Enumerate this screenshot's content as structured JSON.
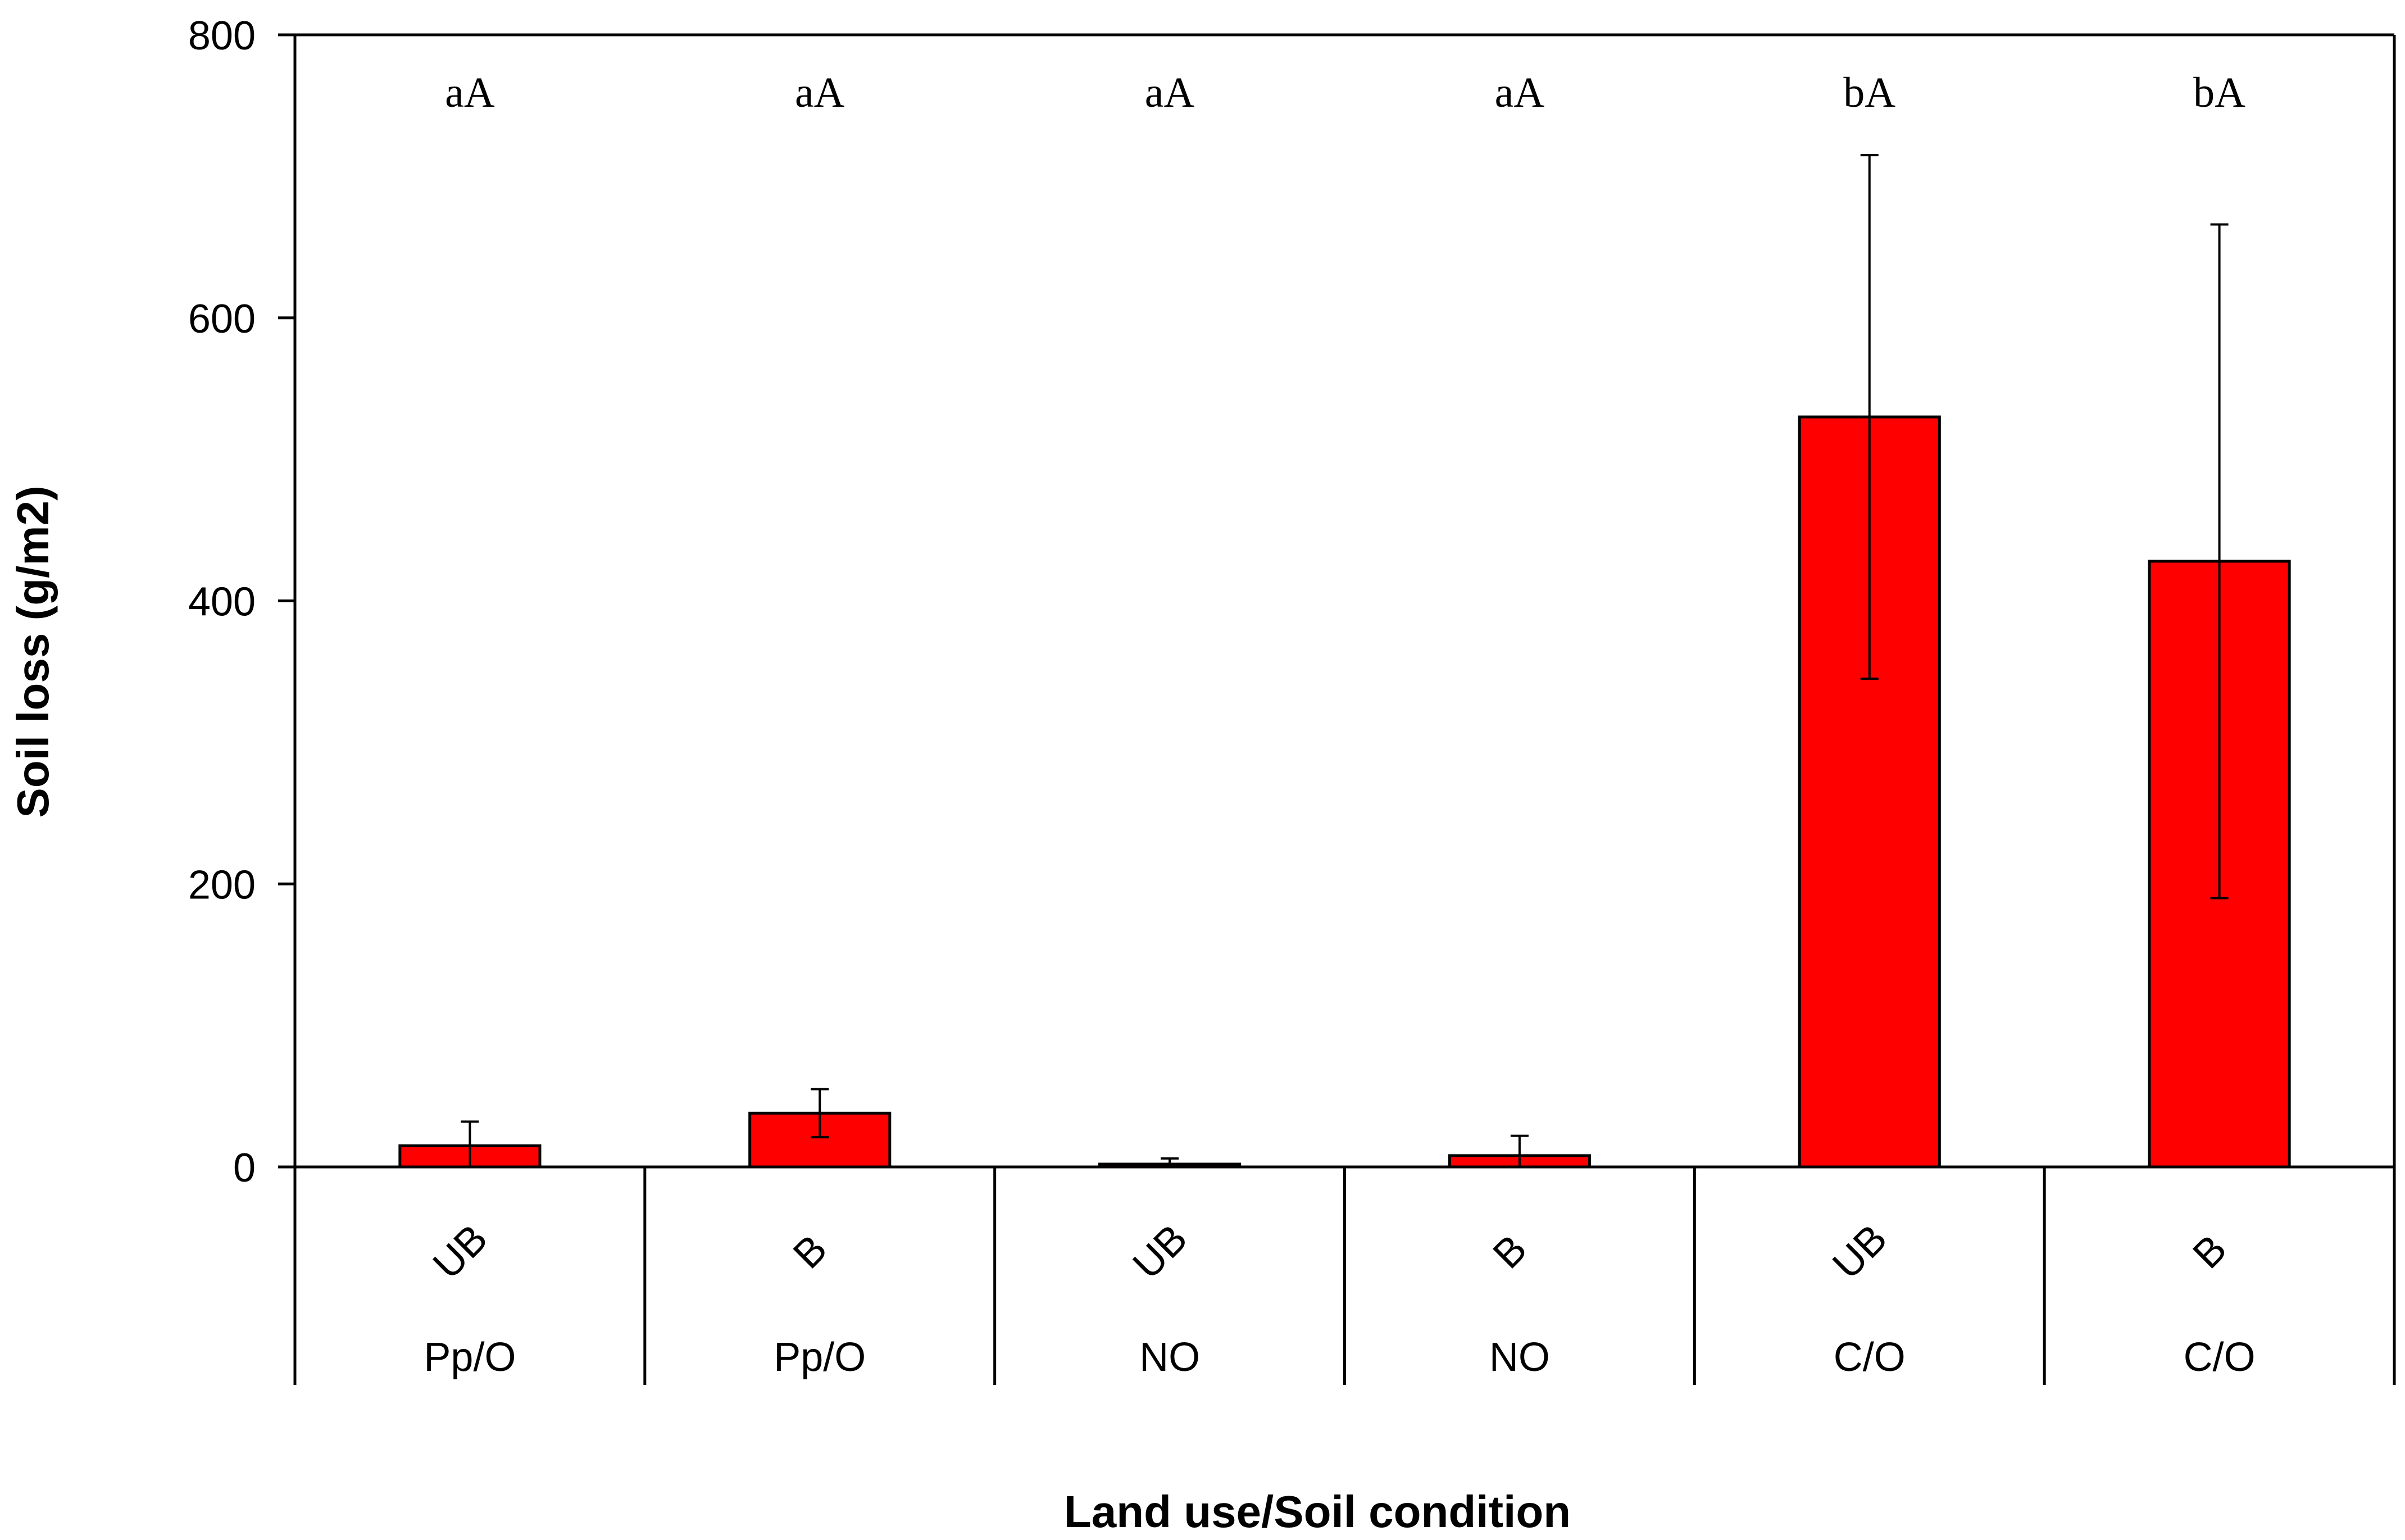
{
  "chart_data": {
    "type": "bar",
    "title": "",
    "xlabel": "Land use/Soil condition",
    "ylabel": "Soil loss (g/m2)",
    "ylim": [
      0,
      800
    ],
    "yticks": [
      "0",
      "200",
      "400",
      "600",
      "800"
    ],
    "grid": false,
    "bar_color": "#ff0000",
    "categories": [
      {
        "condition": "UB",
        "land_use": "Pp/O"
      },
      {
        "condition": "B",
        "land_use": "Pp/O"
      },
      {
        "condition": "UB",
        "land_use": "NO"
      },
      {
        "condition": "B",
        "land_use": "NO"
      },
      {
        "condition": "UB",
        "land_use": "C/O"
      },
      {
        "condition": "B",
        "land_use": "C/O"
      }
    ],
    "values": [
      15,
      38,
      2,
      8,
      530,
      428
    ],
    "error_upper": [
      32,
      55,
      6,
      22,
      715,
      666
    ],
    "error_lower": [
      0,
      21,
      0,
      0,
      345,
      190
    ],
    "significance_labels": [
      "aA",
      "aA",
      "aA",
      "aA",
      "bA",
      "bA"
    ]
  }
}
